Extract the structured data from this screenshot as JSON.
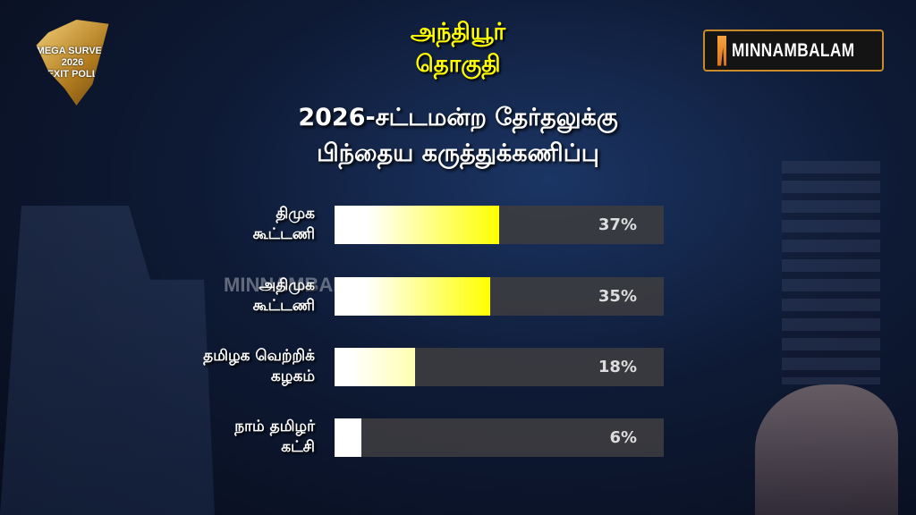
{
  "header": {
    "event_logo_text": [
      "MEGA SURVEY",
      "2026",
      "EXIT POLL"
    ],
    "brand": "MINNAMBALAM",
    "constituency_lines": [
      "அந்தியூர்",
      "தொகுதி"
    ],
    "title_lines": [
      "2026-சட்டமன்ற தேர்தலுக்கு",
      "பிந்தைய கருத்துக்கணிப்பு"
    ]
  },
  "watermark": "MINNAMBALAM",
  "chart_data": {
    "type": "bar",
    "orientation": "horizontal",
    "title": "2026-சட்டமன்ற தேர்தலுக்கு பிந்தைய கருத்துக்கணிப்பு",
    "categories": [
      [
        "திமுக",
        "கூட்டணி"
      ],
      [
        "அதிமுக",
        "கூட்டணி"
      ],
      [
        "தமிழக வெற்றிக்",
        "கழகம்"
      ],
      [
        "நாம் தமிழர்",
        "கட்சி"
      ]
    ],
    "values": [
      37,
      35,
      18,
      6
    ],
    "value_labels": [
      "37%",
      "35%",
      "18%",
      "6%"
    ],
    "unit": "%",
    "xlim": [
      0,
      74
    ],
    "grid": false,
    "legend": "none",
    "colors": {
      "fill_start": "#ffffff",
      "fill_end": "#ffff00",
      "track": "#3c3c40"
    }
  }
}
